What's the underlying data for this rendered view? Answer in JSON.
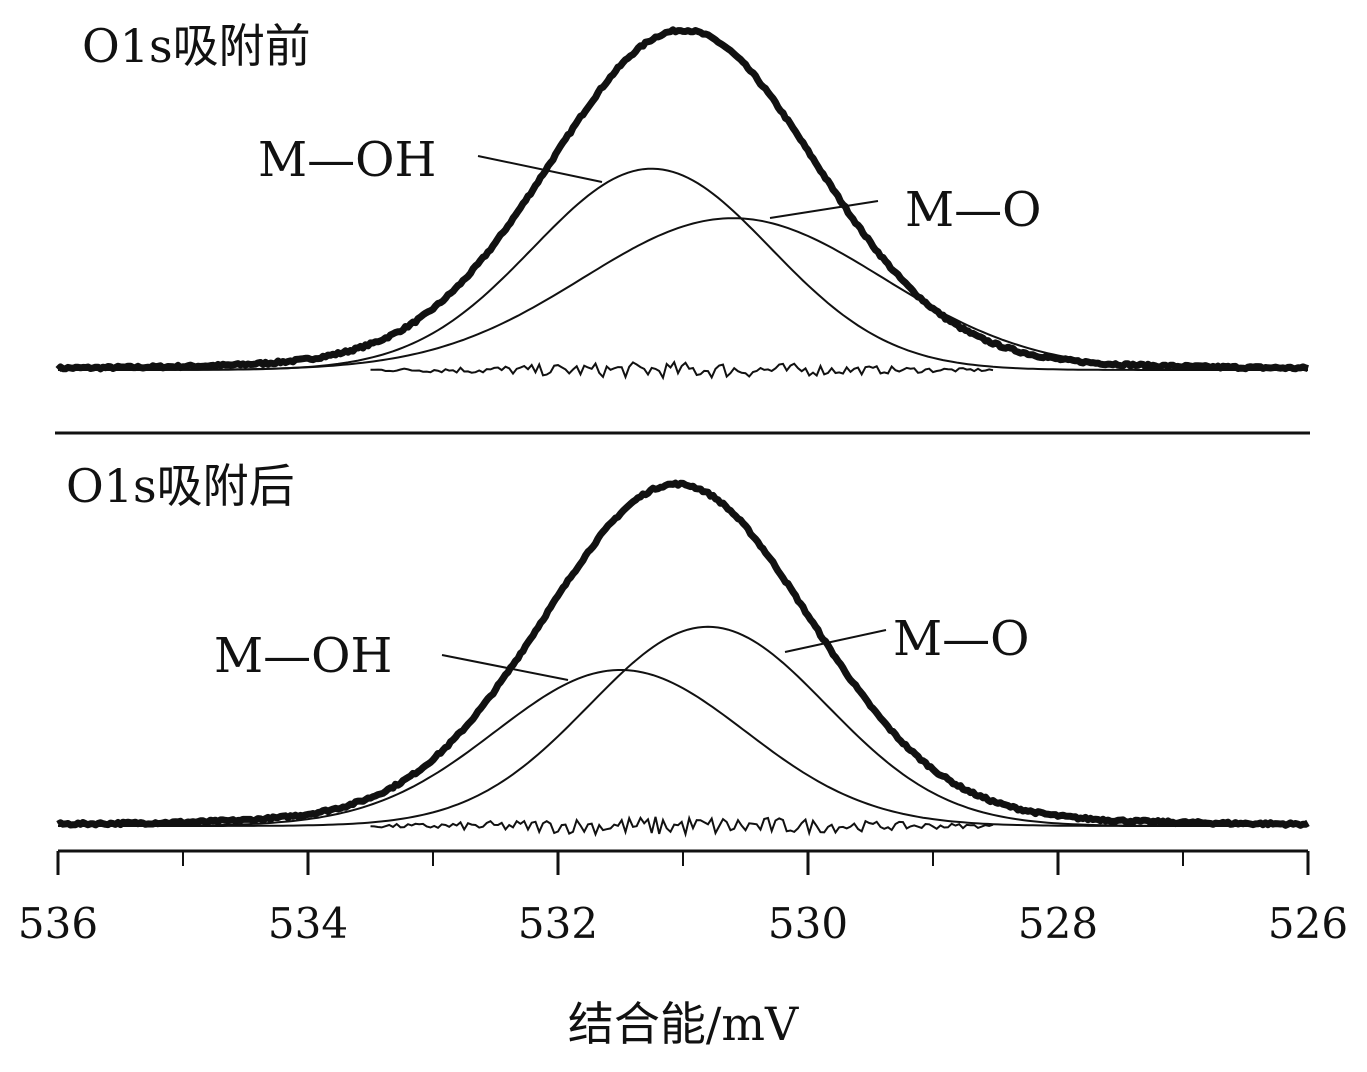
{
  "chart_data": [
    {
      "type": "line",
      "title": "O1s吸附前",
      "xlabel": "结合能/mV",
      "xlim": [
        536,
        526
      ],
      "x_reversed": true,
      "y_unit": "relative intensity (no y-axis shown)",
      "series": [
        {
          "name": "envelope",
          "style": "thick",
          "center": 531.0,
          "sigma": 1.05,
          "height": 1.0,
          "baseline_noise": 0.008
        },
        {
          "name": "M—OH",
          "style": "thin",
          "center": 531.25,
          "sigma": 0.95,
          "height": 0.61
        },
        {
          "name": "M—O",
          "style": "thin",
          "center": 530.6,
          "sigma": 1.2,
          "height": 0.46
        },
        {
          "name": "residual",
          "style": "thin-noisy",
          "center": 531.0,
          "amplitude": 0.025,
          "range": [
            533.5,
            528.5
          ]
        }
      ],
      "annotations": [
        {
          "text": "M—OH",
          "points_to": "M—OH"
        },
        {
          "text": "M—O",
          "points_to": "M—O"
        }
      ]
    },
    {
      "type": "line",
      "title": "O1s吸附后",
      "xlabel": "结合能/mV",
      "xlim": [
        536,
        526
      ],
      "x_reversed": true,
      "y_unit": "relative intensity (no y-axis shown)",
      "series": [
        {
          "name": "envelope",
          "style": "thick",
          "center": 531.05,
          "sigma": 1.05,
          "height": 1.0,
          "baseline_noise": 0.008
        },
        {
          "name": "M—OH",
          "style": "thin",
          "center": 531.5,
          "sigma": 1.0,
          "height": 0.47
        },
        {
          "name": "M—O",
          "style": "thin",
          "center": 530.8,
          "sigma": 0.95,
          "height": 0.6
        },
        {
          "name": "residual",
          "style": "thin-noisy",
          "center": 531.0,
          "amplitude": 0.03,
          "range": [
            533.5,
            528.5
          ]
        }
      ],
      "annotations": [
        {
          "text": "M—OH",
          "points_to": "M—OH"
        },
        {
          "text": "M—O",
          "points_to": "M—O"
        }
      ]
    }
  ],
  "axis": {
    "ticks_major": [
      536,
      534,
      532,
      530,
      528,
      526
    ],
    "tick_labels": [
      "536",
      "534",
      "532",
      "530",
      "528",
      "526"
    ],
    "ticks_minor": [
      535,
      533,
      531,
      529,
      527
    ]
  },
  "colors": {
    "line": "#111111",
    "background": "#ffffff"
  }
}
